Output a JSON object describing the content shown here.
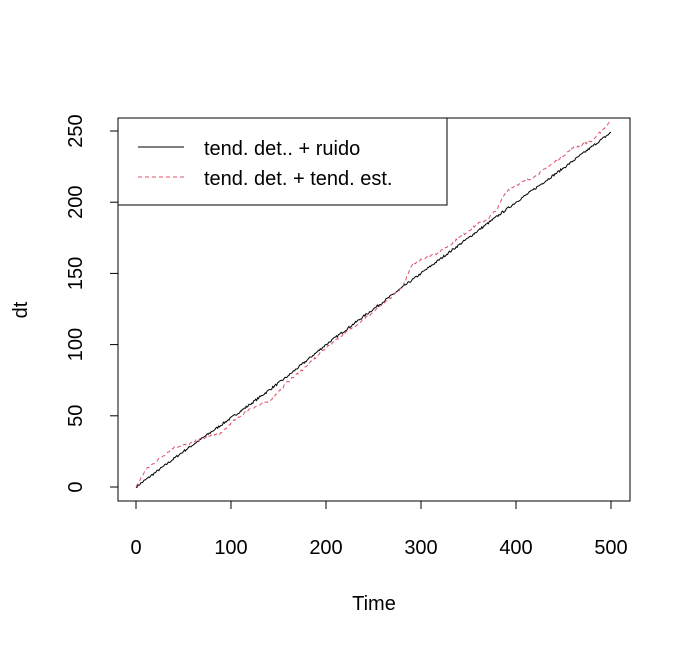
{
  "chart_data": {
    "type": "line",
    "title": "",
    "xlabel": "Time",
    "ylabel": "dt",
    "xlim": [
      0,
      500
    ],
    "ylim": [
      0,
      250
    ],
    "x_ticks": [
      "0",
      "100",
      "200",
      "300",
      "400",
      "500"
    ],
    "y_ticks": [
      "0",
      "50",
      "100",
      "150",
      "200",
      "250"
    ],
    "grid": false,
    "legend_position": "top-left",
    "series": [
      {
        "name": "tend. det.. + ruido",
        "color": "#000000",
        "dash": "solid",
        "points": [
          [
            0,
            0
          ],
          [
            20,
            10
          ],
          [
            50,
            25
          ],
          [
            80,
            39
          ],
          [
            120,
            58
          ],
          [
            160,
            78
          ],
          [
            200,
            100
          ],
          [
            250,
            125
          ],
          [
            300,
            150
          ],
          [
            350,
            175
          ],
          [
            400,
            200
          ],
          [
            450,
            224
          ],
          [
            500,
            249
          ]
        ]
      },
      {
        "name": "tend. det. + tend. est.",
        "color": "#df536b",
        "dash": "dashed",
        "points": [
          [
            0,
            0
          ],
          [
            10,
            12
          ],
          [
            25,
            20
          ],
          [
            40,
            28
          ],
          [
            55,
            30
          ],
          [
            70,
            34
          ],
          [
            80,
            36
          ],
          [
            90,
            38
          ],
          [
            100,
            45
          ],
          [
            120,
            55
          ],
          [
            140,
            60
          ],
          [
            160,
            74
          ],
          [
            180,
            85
          ],
          [
            200,
            98
          ],
          [
            220,
            108
          ],
          [
            240,
            118
          ],
          [
            260,
            128
          ],
          [
            270,
            134
          ],
          [
            280,
            140
          ],
          [
            290,
            155
          ],
          [
            300,
            160
          ],
          [
            320,
            165
          ],
          [
            340,
            175
          ],
          [
            360,
            185
          ],
          [
            370,
            188
          ],
          [
            380,
            195
          ],
          [
            390,
            208
          ],
          [
            400,
            212
          ],
          [
            420,
            218
          ],
          [
            440,
            228
          ],
          [
            460,
            238
          ],
          [
            480,
            243
          ],
          [
            500,
            257
          ]
        ]
      }
    ]
  }
}
